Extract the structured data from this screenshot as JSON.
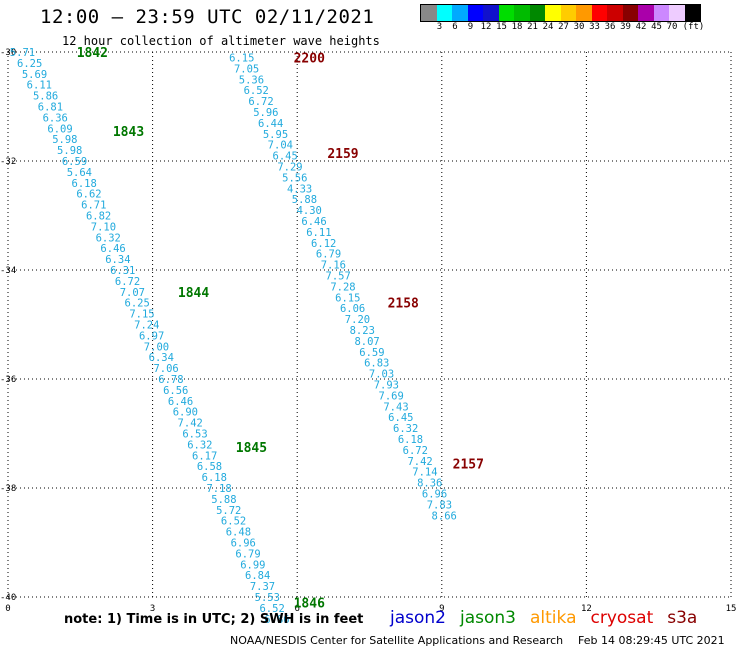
{
  "header": {
    "title": "12:00 — 23:59 UTC 02/11/2021",
    "subtitle": "12 hour collection of altimeter wave heights"
  },
  "colorbar": {
    "colors": [
      "#888888",
      "#00ffff",
      "#00aaff",
      "#0000ff",
      "#1111cc",
      "#00dd00",
      "#00bb00",
      "#008800",
      "#ffff00",
      "#ffcc00",
      "#ff9900",
      "#ff0000",
      "#cc0000",
      "#880000",
      "#aa00aa",
      "#cc88ff",
      "#eeccff",
      "#000000"
    ],
    "ticks": [
      "3",
      "6",
      "9",
      "12",
      "15",
      "18",
      "21",
      "24",
      "27",
      "30",
      "33",
      "36",
      "39",
      "42",
      "45",
      "70",
      "(ft)"
    ]
  },
  "map": {
    "lon_ticks": [
      "0",
      "3",
      "6",
      "9",
      "12",
      "15"
    ],
    "lat_ticks": [
      "-30",
      "-32",
      "-34",
      "-36",
      "-38",
      "-40"
    ],
    "lon_range": [
      0,
      15
    ],
    "lat_range": [
      -40,
      -30
    ],
    "grid": true,
    "value_color": "#22aadd",
    "tracks": [
      {
        "name": "west-track",
        "points": [
          {
            "lon": 0.3,
            "lat": -30.0,
            "v": "5.71"
          },
          {
            "lon": 0.45,
            "lat": -30.2,
            "v": "6.25"
          },
          {
            "lon": 0.55,
            "lat": -30.4,
            "v": "5.69"
          },
          {
            "lon": 0.65,
            "lat": -30.6,
            "v": "6.11"
          },
          {
            "lon": 0.78,
            "lat": -30.8,
            "v": "5.86"
          },
          {
            "lon": 0.88,
            "lat": -31.0,
            "v": "6.81"
          },
          {
            "lon": 0.98,
            "lat": -31.2,
            "v": "6.36"
          },
          {
            "lon": 1.08,
            "lat": -31.4,
            "v": "6.09"
          },
          {
            "lon": 1.18,
            "lat": -31.6,
            "v": "5.98"
          },
          {
            "lon": 1.28,
            "lat": -31.8,
            "v": "5.98"
          },
          {
            "lon": 1.38,
            "lat": -32.0,
            "v": "6.59"
          },
          {
            "lon": 1.48,
            "lat": -32.2,
            "v": "5.64"
          },
          {
            "lon": 1.58,
            "lat": -32.4,
            "v": "6.18"
          },
          {
            "lon": 1.68,
            "lat": -32.6,
            "v": "6.62"
          },
          {
            "lon": 1.78,
            "lat": -32.8,
            "v": "6.71"
          },
          {
            "lon": 1.88,
            "lat": -33.0,
            "v": "6.82"
          },
          {
            "lon": 1.98,
            "lat": -33.2,
            "v": "7.10"
          },
          {
            "lon": 2.08,
            "lat": -33.4,
            "v": "6.32"
          },
          {
            "lon": 2.18,
            "lat": -33.6,
            "v": "6.46"
          },
          {
            "lon": 2.28,
            "lat": -33.8,
            "v": "6.34"
          },
          {
            "lon": 2.38,
            "lat": -34.0,
            "v": "6.31"
          },
          {
            "lon": 2.48,
            "lat": -34.2,
            "v": "6.72"
          },
          {
            "lon": 2.58,
            "lat": -34.4,
            "v": "7.07"
          },
          {
            "lon": 2.68,
            "lat": -34.6,
            "v": "6.25"
          },
          {
            "lon": 2.78,
            "lat": -34.8,
            "v": "7.15"
          },
          {
            "lon": 2.88,
            "lat": -35.0,
            "v": "7.24"
          },
          {
            "lon": 2.98,
            "lat": -35.2,
            "v": "6.97"
          },
          {
            "lon": 3.08,
            "lat": -35.4,
            "v": "7.00"
          },
          {
            "lon": 3.18,
            "lat": -35.6,
            "v": "6.34"
          },
          {
            "lon": 3.28,
            "lat": -35.8,
            "v": "7.06"
          },
          {
            "lon": 3.38,
            "lat": -36.0,
            "v": "6.78"
          },
          {
            "lon": 3.48,
            "lat": -36.2,
            "v": "6.56"
          },
          {
            "lon": 3.58,
            "lat": -36.4,
            "v": "6.46"
          },
          {
            "lon": 3.68,
            "lat": -36.6,
            "v": "6.90"
          },
          {
            "lon": 3.78,
            "lat": -36.8,
            "v": "7.42"
          },
          {
            "lon": 3.88,
            "lat": -37.0,
            "v": "6.53"
          },
          {
            "lon": 3.98,
            "lat": -37.2,
            "v": "6.32"
          },
          {
            "lon": 4.08,
            "lat": -37.4,
            "v": "6.17"
          },
          {
            "lon": 4.18,
            "lat": -37.6,
            "v": "6.58"
          },
          {
            "lon": 4.28,
            "lat": -37.8,
            "v": "6.18"
          },
          {
            "lon": 4.38,
            "lat": -38.0,
            "v": "7.18"
          },
          {
            "lon": 4.48,
            "lat": -38.2,
            "v": "5.88"
          },
          {
            "lon": 4.58,
            "lat": -38.4,
            "v": "5.72"
          },
          {
            "lon": 4.68,
            "lat": -38.6,
            "v": "6.52"
          },
          {
            "lon": 4.78,
            "lat": -38.8,
            "v": "6.48"
          },
          {
            "lon": 4.88,
            "lat": -39.0,
            "v": "6.96"
          },
          {
            "lon": 4.98,
            "lat": -39.2,
            "v": "6.79"
          },
          {
            "lon": 5.08,
            "lat": -39.4,
            "v": "6.99"
          },
          {
            "lon": 5.18,
            "lat": -39.6,
            "v": "6.84"
          },
          {
            "lon": 5.28,
            "lat": -39.8,
            "v": "7.37"
          },
          {
            "lon": 5.38,
            "lat": -40.0,
            "v": "5.53"
          },
          {
            "lon": 5.48,
            "lat": -40.2,
            "v": "6.52"
          },
          {
            "lon": 5.58,
            "lat": -40.4,
            "v": "6.86"
          }
        ],
        "time_labels": [
          {
            "lon": 1.75,
            "lat": -30.0,
            "t": "1842"
          },
          {
            "lon": 2.5,
            "lat": -31.45,
            "t": "1843"
          },
          {
            "lon": 3.85,
            "lat": -34.4,
            "t": "1844"
          },
          {
            "lon": 5.05,
            "lat": -37.25,
            "t": "1845"
          },
          {
            "lon": 6.25,
            "lat": -40.1,
            "t": "1846"
          }
        ]
      },
      {
        "name": "east-track",
        "points": [
          {
            "lon": 4.85,
            "lat": -30.1,
            "v": "6.15"
          },
          {
            "lon": 4.95,
            "lat": -30.3,
            "v": "7.05"
          },
          {
            "lon": 5.05,
            "lat": -30.5,
            "v": "5.36"
          },
          {
            "lon": 5.15,
            "lat": -30.7,
            "v": "6.52"
          },
          {
            "lon": 5.25,
            "lat": -30.9,
            "v": "6.72"
          },
          {
            "lon": 5.35,
            "lat": -31.1,
            "v": "5.96"
          },
          {
            "lon": 5.45,
            "lat": -31.3,
            "v": "6.44"
          },
          {
            "lon": 5.55,
            "lat": -31.5,
            "v": "5.95"
          },
          {
            "lon": 5.65,
            "lat": -31.7,
            "v": "7.04"
          },
          {
            "lon": 5.75,
            "lat": -31.9,
            "v": "6.45"
          },
          {
            "lon": 5.85,
            "lat": -32.1,
            "v": "7.29"
          },
          {
            "lon": 5.95,
            "lat": -32.3,
            "v": "5.56"
          },
          {
            "lon": 6.05,
            "lat": -32.5,
            "v": "4.33"
          },
          {
            "lon": 6.15,
            "lat": -32.7,
            "v": "5.88"
          },
          {
            "lon": 6.25,
            "lat": -32.9,
            "v": "4.30"
          },
          {
            "lon": 6.35,
            "lat": -33.1,
            "v": "6.46"
          },
          {
            "lon": 6.45,
            "lat": -33.3,
            "v": "6.11"
          },
          {
            "lon": 6.55,
            "lat": -33.5,
            "v": "6.12"
          },
          {
            "lon": 6.65,
            "lat": -33.7,
            "v": "6.79"
          },
          {
            "lon": 6.75,
            "lat": -33.9,
            "v": "7.16"
          },
          {
            "lon": 6.85,
            "lat": -34.1,
            "v": "7.57"
          },
          {
            "lon": 6.95,
            "lat": -34.3,
            "v": "7.28"
          },
          {
            "lon": 7.05,
            "lat": -34.5,
            "v": "6.15"
          },
          {
            "lon": 7.15,
            "lat": -34.7,
            "v": "6.06"
          },
          {
            "lon": 7.25,
            "lat": -34.9,
            "v": "7.20"
          },
          {
            "lon": 7.35,
            "lat": -35.1,
            "v": "8.23"
          },
          {
            "lon": 7.45,
            "lat": -35.3,
            "v": "8.07"
          },
          {
            "lon": 7.55,
            "lat": -35.5,
            "v": "6.59"
          },
          {
            "lon": 7.65,
            "lat": -35.7,
            "v": "6.83"
          },
          {
            "lon": 7.75,
            "lat": -35.9,
            "v": "7.03"
          },
          {
            "lon": 7.85,
            "lat": -36.1,
            "v": "7.93"
          },
          {
            "lon": 7.95,
            "lat": -36.3,
            "v": "7.69"
          },
          {
            "lon": 8.05,
            "lat": -36.5,
            "v": "7.43"
          },
          {
            "lon": 8.15,
            "lat": -36.7,
            "v": "6.45"
          },
          {
            "lon": 8.25,
            "lat": -36.9,
            "v": "6.32"
          },
          {
            "lon": 8.35,
            "lat": -37.1,
            "v": "6.18"
          },
          {
            "lon": 8.45,
            "lat": -37.3,
            "v": "6.72"
          },
          {
            "lon": 8.55,
            "lat": -37.5,
            "v": "7.42"
          },
          {
            "lon": 8.65,
            "lat": -37.7,
            "v": "7.14"
          },
          {
            "lon": 8.75,
            "lat": -37.9,
            "v": "8.36"
          },
          {
            "lon": 8.85,
            "lat": -38.1,
            "v": "6.96"
          },
          {
            "lon": 8.95,
            "lat": -38.3,
            "v": "7.83"
          },
          {
            "lon": 9.05,
            "lat": -38.5,
            "v": "8.66"
          }
        ],
        "time_labels": [
          {
            "lon": 6.25,
            "lat": -30.1,
            "t": "2200"
          },
          {
            "lon": 6.95,
            "lat": -31.85,
            "t": "2159"
          },
          {
            "lon": 8.2,
            "lat": -34.6,
            "t": "2158"
          },
          {
            "lon": 9.55,
            "lat": -37.55,
            "t": "2157"
          }
        ]
      }
    ]
  },
  "footer": {
    "note": "note:  1) Time is in UTC;  2) SWH is in feet",
    "satellites": [
      {
        "name": "jason2",
        "color": "#0000cc"
      },
      {
        "name": "jason3",
        "color": "#008800"
      },
      {
        "name": "altika",
        "color": "#ff9900"
      },
      {
        "name": "cryosat",
        "color": "#dd0000"
      },
      {
        "name": "s3a",
        "color": "#880000"
      }
    ],
    "credit": "NOAA/NESDIS Center for Satellite Applications and Research",
    "timestamp": "Feb 14 08:29:45 UTC 2021"
  }
}
